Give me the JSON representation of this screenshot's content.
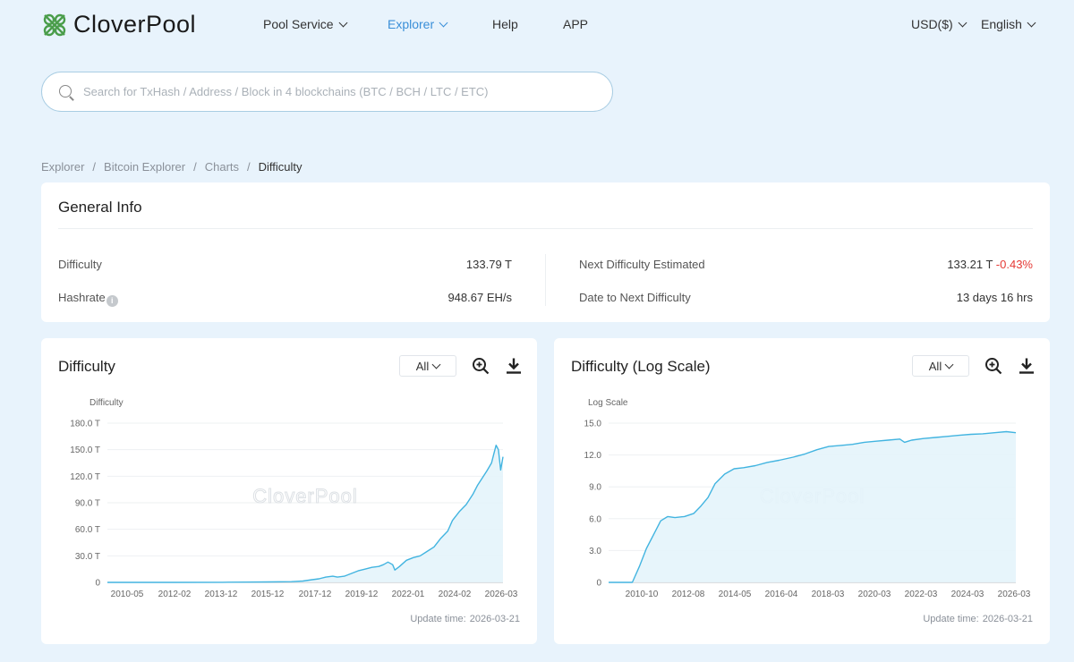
{
  "brand": {
    "name": "CloverPool",
    "accent": "#3a8fd8",
    "logo_green": "#4a9d4a"
  },
  "nav": {
    "pool_service": "Pool Service",
    "explorer": "Explorer",
    "help": "Help",
    "app": "APP",
    "currency": "USD($)",
    "language": "English"
  },
  "search": {
    "placeholder": "Search for TxHash / Address / Block in 4 blockchains (BTC / BCH / LTC / ETC)"
  },
  "breadcrumb": [
    "Explorer",
    "Bitcoin Explorer",
    "Charts",
    "Difficulty"
  ],
  "general_info": {
    "title": "General Info",
    "difficulty_label": "Difficulty",
    "difficulty_value": "133.79 T",
    "hashrate_label": "Hashrate",
    "hashrate_value": "948.67 EH/s",
    "next_label": "Next Difficulty Estimated",
    "next_value": "133.21 T",
    "next_change": "-0.43%",
    "date_label": "Date to Next Difficulty",
    "date_value": "13 days 16 hrs"
  },
  "charts": {
    "range": "All",
    "update_label": "Update time:",
    "update_time": "2026-03-21",
    "watermark": "CloverPool"
  },
  "chart_data": [
    {
      "type": "area",
      "title": "Difficulty",
      "ylabel": "Difficulty",
      "ylim": [
        0,
        180
      ],
      "yticks": [
        "0",
        "30.0 T",
        "60.0 T",
        "90.0 T",
        "120.0 T",
        "150.0 T",
        "180.0 T"
      ],
      "xticks": [
        "2010-05",
        "2012-02",
        "2013-12",
        "2015-12",
        "2017-12",
        "2019-12",
        "2022-01",
        "2024-02",
        "2026-03"
      ],
      "line_color": "#42b4e0",
      "x": [
        2009.0,
        2012.0,
        2014.0,
        2015.0,
        2016.0,
        2017.0,
        2017.5,
        2017.9,
        2018.2,
        2018.5,
        2018.8,
        2019.0,
        2019.3,
        2019.6,
        2019.9,
        2020.2,
        2020.5,
        2020.8,
        2021.0,
        2021.2,
        2021.4,
        2021.5,
        2021.7,
        2022.0,
        2022.3,
        2022.6,
        2022.9,
        2023.2,
        2023.5,
        2023.8,
        2024.0,
        2024.3,
        2024.6,
        2024.9,
        2025.1,
        2025.3,
        2025.5,
        2025.7,
        2025.8,
        2025.9,
        2026.0,
        2026.1,
        2026.2
      ],
      "values": [
        0,
        0.01,
        0.1,
        0.3,
        0.5,
        0.8,
        1.5,
        3,
        4,
        6,
        7,
        6,
        7,
        10,
        13,
        15,
        17,
        18,
        20,
        23,
        20,
        14,
        18,
        25,
        28,
        30,
        35,
        40,
        50,
        58,
        70,
        80,
        88,
        100,
        110,
        118,
        126,
        135,
        145,
        155,
        150,
        127,
        142
      ]
    },
    {
      "type": "area",
      "title": "Difficulty (Log Scale)",
      "ylabel": "Log Scale",
      "ylim": [
        0,
        15
      ],
      "yticks": [
        "0",
        "3.0",
        "6.0",
        "9.0",
        "12.0",
        "15.0"
      ],
      "xticks": [
        "2010-10",
        "2012-08",
        "2014-05",
        "2016-04",
        "2018-03",
        "2020-03",
        "2022-03",
        "2024-03",
        "2026-03"
      ],
      "line_color": "#42b4e0",
      "x": [
        2009.0,
        2009.6,
        2010.0,
        2010.3,
        2010.6,
        2010.9,
        2011.2,
        2011.5,
        2011.8,
        2012.2,
        2012.6,
        2012.9,
        2013.2,
        2013.5,
        2013.9,
        2014.3,
        2014.7,
        2015.2,
        2015.7,
        2016.2,
        2016.8,
        2017.3,
        2017.8,
        2018.3,
        2018.8,
        2019.3,
        2019.8,
        2020.3,
        2020.8,
        2021.3,
        2021.5,
        2021.8,
        2022.3,
        2022.8,
        2023.3,
        2023.8,
        2024.3,
        2024.8,
        2025.3,
        2025.8,
        2026.2
      ],
      "values": [
        0,
        0,
        0,
        1.5,
        3.2,
        4.5,
        5.8,
        6.2,
        6.1,
        6.2,
        6.5,
        7.2,
        8.0,
        9.3,
        10.2,
        10.7,
        10.8,
        11.0,
        11.3,
        11.5,
        11.8,
        12.1,
        12.5,
        12.8,
        12.9,
        13.0,
        13.2,
        13.3,
        13.4,
        13.5,
        13.2,
        13.4,
        13.55,
        13.65,
        13.75,
        13.85,
        13.95,
        14.0,
        14.1,
        14.2,
        14.1
      ]
    }
  ]
}
